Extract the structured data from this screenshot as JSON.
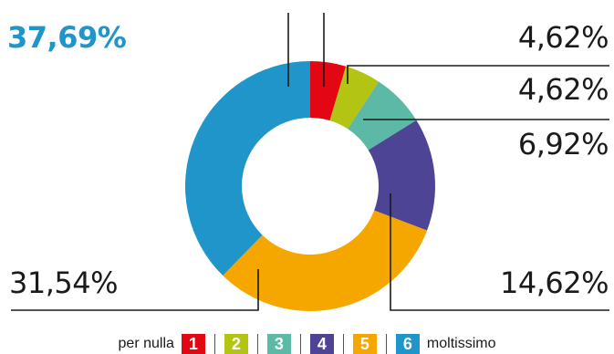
{
  "chart_data": {
    "type": "pie",
    "categories": [
      "1",
      "2",
      "3",
      "4",
      "5",
      "6"
    ],
    "values": [
      4.62,
      4.62,
      6.92,
      14.62,
      31.54,
      37.69
    ],
    "value_labels": [
      "4,62%",
      "4,62%",
      "6,92%",
      "14,62%",
      "31,54%",
      "37,69%"
    ],
    "colors": [
      "#e30613",
      "#b3c512",
      "#5bb9a5",
      "#4e4495",
      "#f5a700",
      "#1f95c9"
    ],
    "highlight_color": "#1f95c9",
    "donut": true
  },
  "legend": {
    "left_label": "per nulla",
    "right_label": "moltissimo"
  }
}
